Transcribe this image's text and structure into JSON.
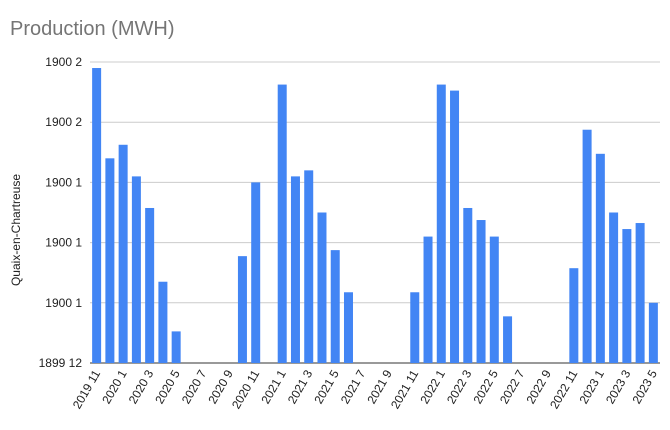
{
  "chart_data": {
    "type": "bar",
    "title": "Production (MWH)",
    "ylabel": "Quaix-en-Chartreuse",
    "xlabel": "",
    "y_tick_labels": [
      "1899 12",
      "1900 1",
      "1900 1",
      "1900 1",
      "1900 2",
      "1900 2"
    ],
    "grid": true,
    "legend": "none",
    "bar_color": "#4285f4",
    "categories": [
      "2019 11",
      "2019 12",
      "2020 1",
      "2020 2",
      "2020 3",
      "2020 4",
      "2020 5",
      "2020 6",
      "2020 7",
      "2020 8",
      "2020 9",
      "2020 10",
      "2020 11",
      "2020 12",
      "2021 1",
      "2021 2",
      "2021 3",
      "2021 4",
      "2021 5",
      "2021 6",
      "2021 7",
      "2021 8",
      "2021 9",
      "2021 10",
      "2021 11",
      "2021 12",
      "2022 1",
      "2022 2",
      "2022 3",
      "2022 4",
      "2022 5",
      "2022 6",
      "2022 7",
      "2022 8",
      "2022 9",
      "2022 10",
      "2022 11",
      "2022 12",
      "2023 1",
      "2023 2",
      "2023 3",
      "2023 4",
      "2023 5"
    ],
    "x_tick_labels": [
      "2019 11",
      "2020 1",
      "2020 3",
      "2020 5",
      "2020 7",
      "2020 9",
      "2020 11",
      "2021 1",
      "2021 3",
      "2021 5",
      "2021 7",
      "2021 9",
      "2021 11",
      "2022 1",
      "2022 3",
      "2022 5",
      "2022 7",
      "2022 9",
      "2022 11",
      "2023 1",
      "2023 3",
      "2023 5"
    ],
    "values": [
      98,
      68,
      72.5,
      62,
      51.5,
      27,
      10.5,
      0,
      0,
      0,
      0,
      35.5,
      60,
      0,
      92.5,
      62,
      64,
      50,
      37.5,
      23.5,
      0,
      0,
      0,
      0,
      23.5,
      42,
      92.5,
      90.5,
      51.5,
      47.5,
      42,
      15.5,
      0,
      0,
      0,
      0,
      31.5,
      77.5,
      69.5,
      50,
      44.5,
      46.5,
      20
    ]
  }
}
